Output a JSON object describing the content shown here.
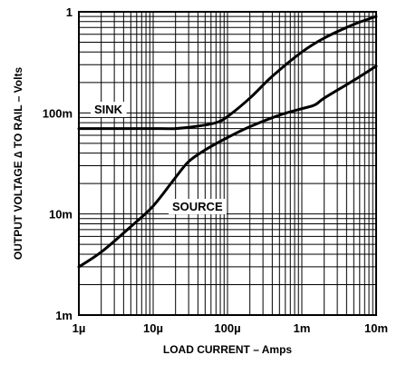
{
  "chart_data": {
    "type": "line",
    "xlabel": "LOAD CURRENT – Amps",
    "ylabel": "OUTPUT VOLTAGE ∆ TO RAIL – Volts",
    "x_scale": "log",
    "y_scale": "log",
    "xlim": [
      1e-06,
      0.01
    ],
    "ylim": [
      0.001,
      1
    ],
    "grid": true,
    "x_ticks": [
      {
        "value": 1e-06,
        "label": "1µ"
      },
      {
        "value": 1e-05,
        "label": "10µ"
      },
      {
        "value": 0.0001,
        "label": "100µ"
      },
      {
        "value": 0.001,
        "label": "1m"
      },
      {
        "value": 0.01,
        "label": "10m"
      }
    ],
    "y_ticks": [
      {
        "value": 0.001,
        "label": "1m"
      },
      {
        "value": 0.01,
        "label": "10m"
      },
      {
        "value": 0.1,
        "label": "100m"
      },
      {
        "value": 1,
        "label": "1"
      }
    ],
    "series": [
      {
        "name": "SINK",
        "x": [
          1e-06,
          2e-06,
          5e-06,
          1e-05,
          2e-05,
          4e-05,
          7e-05,
          0.0001,
          0.0002,
          0.0004,
          0.001,
          0.002,
          0.005,
          0.01
        ],
        "y": [
          0.07,
          0.07,
          0.07,
          0.07,
          0.07,
          0.074,
          0.08,
          0.092,
          0.14,
          0.23,
          0.4,
          0.55,
          0.75,
          0.9
        ]
      },
      {
        "name": "SOURCE",
        "x": [
          1e-06,
          2e-06,
          5e-06,
          1e-05,
          2e-05,
          3e-05,
          5e-05,
          0.0001,
          0.0002,
          0.0005,
          0.001,
          0.0015,
          0.002,
          0.005,
          0.01
        ],
        "y": [
          0.003,
          0.0042,
          0.0075,
          0.012,
          0.023,
          0.033,
          0.043,
          0.057,
          0.073,
          0.095,
          0.11,
          0.12,
          0.14,
          0.21,
          0.29
        ]
      }
    ]
  }
}
